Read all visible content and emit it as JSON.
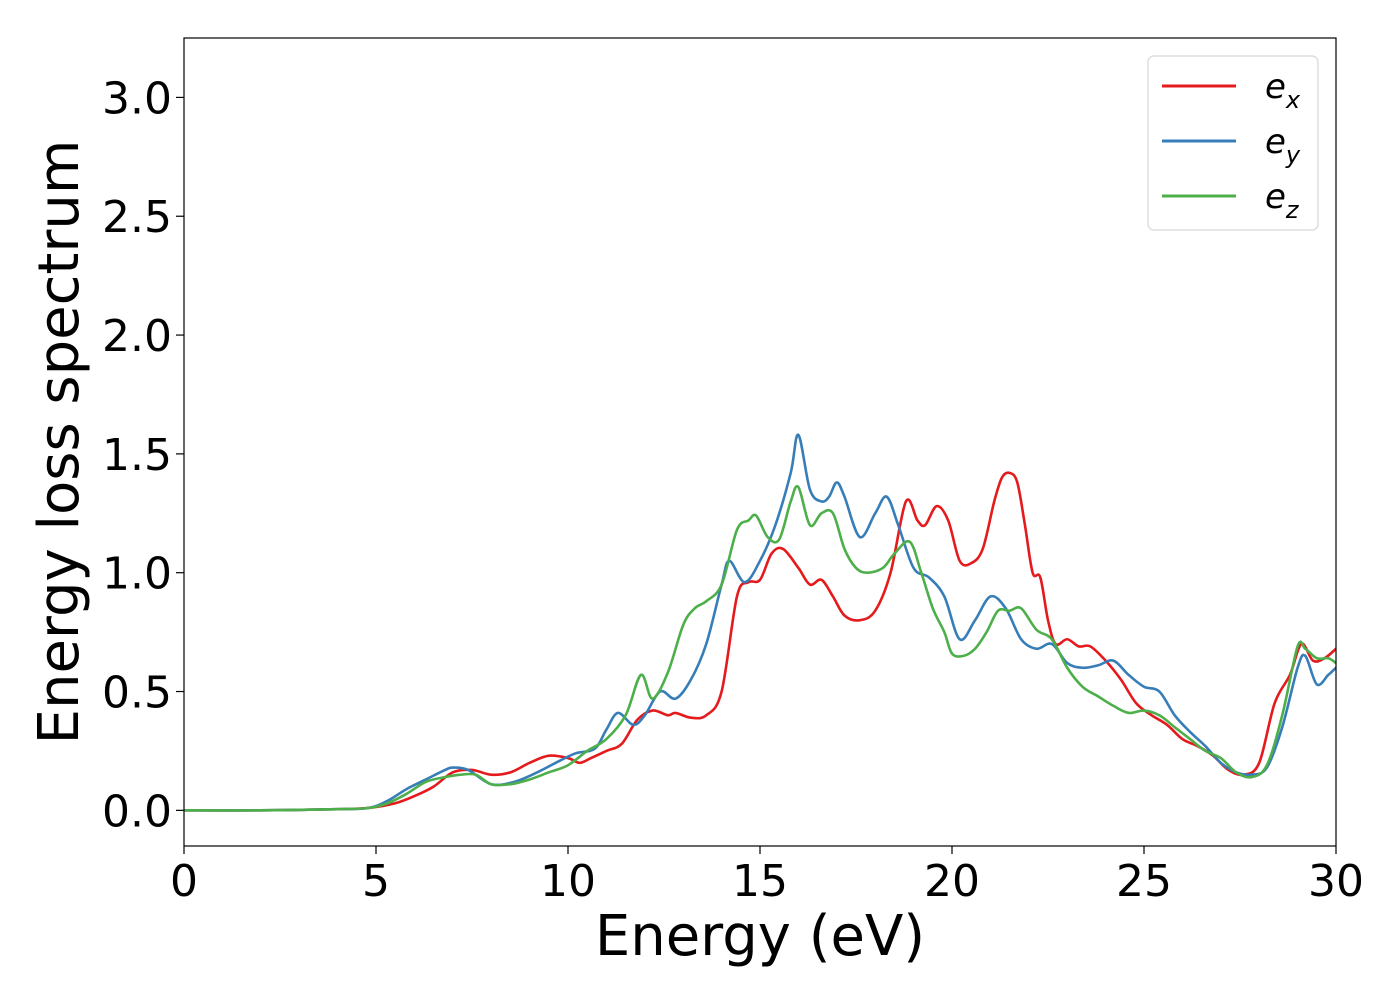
{
  "chart_data": {
    "type": "line",
    "title": "",
    "xlabel": "Energy (eV)",
    "ylabel": "Energy loss spectrum",
    "xlim": [
      0,
      30
    ],
    "ylim": [
      -0.15,
      3.25
    ],
    "xticks": [
      0,
      5,
      10,
      15,
      20,
      25,
      30
    ],
    "xtick_labels": [
      "0",
      "5",
      "10",
      "15",
      "20",
      "25",
      "30"
    ],
    "yticks": [
      0.0,
      0.5,
      1.0,
      1.5,
      2.0,
      2.5,
      3.0
    ],
    "ytick_labels": [
      "0.0",
      "0.5",
      "1.0",
      "1.5",
      "2.0",
      "2.5",
      "3.0"
    ],
    "grid": false,
    "legend": {
      "position": "top-right",
      "entries": [
        {
          "base": "e",
          "sub": "x",
          "color": "#e41a1c"
        },
        {
          "base": "e",
          "sub": "y",
          "color": "#377eb8"
        },
        {
          "base": "e",
          "sub": "z",
          "color": "#4daf4a"
        }
      ]
    },
    "series": [
      {
        "name": "e_x",
        "color": "#e41a1c",
        "x": [
          0,
          2,
          4,
          4.8,
          5.5,
          6.0,
          6.5,
          7.0,
          7.5,
          8.0,
          8.5,
          9.0,
          9.5,
          10.0,
          10.3,
          10.6,
          11.0,
          11.4,
          11.8,
          12.2,
          12.6,
          12.8,
          13.2,
          13.6,
          14.0,
          14.4,
          14.7,
          15.0,
          15.3,
          15.6,
          16.0,
          16.3,
          16.6,
          16.9,
          17.2,
          17.6,
          18.0,
          18.4,
          18.8,
          19.1,
          19.3,
          19.6,
          19.9,
          20.2,
          20.5,
          20.8,
          21.1,
          21.3,
          21.5,
          21.7,
          21.9,
          22.1,
          22.3,
          22.5,
          22.7,
          23.0,
          23.3,
          23.6,
          24.0,
          24.4,
          24.8,
          25.2,
          25.6,
          26.0,
          26.4,
          26.8,
          27.2,
          27.6,
          28.0,
          28.4,
          28.8,
          29.1,
          29.4,
          29.7,
          30.0
        ],
        "y": [
          0.0,
          0.0,
          0.005,
          0.01,
          0.03,
          0.06,
          0.1,
          0.16,
          0.17,
          0.15,
          0.16,
          0.2,
          0.23,
          0.22,
          0.2,
          0.22,
          0.25,
          0.28,
          0.38,
          0.42,
          0.4,
          0.41,
          0.39,
          0.4,
          0.5,
          0.9,
          0.96,
          0.97,
          1.08,
          1.1,
          1.02,
          0.95,
          0.97,
          0.9,
          0.82,
          0.8,
          0.84,
          1.0,
          1.3,
          1.22,
          1.2,
          1.28,
          1.22,
          1.05,
          1.04,
          1.1,
          1.3,
          1.4,
          1.42,
          1.38,
          1.2,
          1.0,
          0.98,
          0.8,
          0.7,
          0.72,
          0.69,
          0.69,
          0.63,
          0.55,
          0.45,
          0.4,
          0.36,
          0.3,
          0.27,
          0.23,
          0.17,
          0.15,
          0.2,
          0.45,
          0.57,
          0.7,
          0.63,
          0.64,
          0.68
        ]
      },
      {
        "name": "e_y",
        "color": "#377eb8",
        "x": [
          0,
          2,
          4,
          4.8,
          5.3,
          5.8,
          6.3,
          6.8,
          7.0,
          7.4,
          8.0,
          8.6,
          9.2,
          9.8,
          10.2,
          10.7,
          11.0,
          11.3,
          11.7,
          12.0,
          12.4,
          12.8,
          13.2,
          13.6,
          14.0,
          14.2,
          14.6,
          15.0,
          15.4,
          15.8,
          16.0,
          16.3,
          16.6,
          16.8,
          17.0,
          17.2,
          17.6,
          18.0,
          18.3,
          18.6,
          19.0,
          19.4,
          19.8,
          20.2,
          20.6,
          21.0,
          21.4,
          21.8,
          22.2,
          22.6,
          23.0,
          23.4,
          23.8,
          24.2,
          24.6,
          25.0,
          25.4,
          25.8,
          26.2,
          26.6,
          27.0,
          27.4,
          27.8,
          28.2,
          28.6,
          29.0,
          29.2,
          29.5,
          29.8,
          30.0
        ],
        "y": [
          0.0,
          0.0,
          0.005,
          0.01,
          0.04,
          0.09,
          0.13,
          0.17,
          0.18,
          0.17,
          0.11,
          0.12,
          0.16,
          0.21,
          0.24,
          0.26,
          0.34,
          0.41,
          0.36,
          0.4,
          0.5,
          0.47,
          0.55,
          0.7,
          0.95,
          1.05,
          0.96,
          1.05,
          1.2,
          1.42,
          1.58,
          1.35,
          1.3,
          1.32,
          1.38,
          1.32,
          1.15,
          1.25,
          1.32,
          1.2,
          1.02,
          0.98,
          0.9,
          0.72,
          0.8,
          0.9,
          0.85,
          0.72,
          0.68,
          0.7,
          0.62,
          0.6,
          0.61,
          0.63,
          0.57,
          0.52,
          0.5,
          0.4,
          0.33,
          0.27,
          0.2,
          0.16,
          0.15,
          0.18,
          0.35,
          0.6,
          0.65,
          0.53,
          0.57,
          0.6
        ]
      },
      {
        "name": "e_z",
        "color": "#4daf4a",
        "x": [
          0,
          2,
          4,
          4.8,
          5.3,
          5.8,
          6.3,
          6.8,
          7.2,
          7.6,
          8.0,
          8.5,
          9.0,
          9.5,
          10.0,
          10.5,
          11.0,
          11.5,
          11.9,
          12.2,
          12.6,
          13.0,
          13.3,
          13.6,
          14.0,
          14.4,
          14.7,
          14.9,
          15.2,
          15.5,
          15.8,
          16.0,
          16.3,
          16.6,
          16.9,
          17.2,
          17.5,
          17.8,
          18.2,
          18.5,
          18.9,
          19.2,
          19.5,
          19.8,
          20.0,
          20.3,
          20.6,
          20.9,
          21.2,
          21.5,
          21.8,
          22.2,
          22.6,
          23.0,
          23.4,
          23.8,
          24.2,
          24.6,
          25.0,
          25.4,
          25.8,
          26.2,
          26.6,
          27.0,
          27.4,
          27.8,
          28.2,
          28.6,
          29.0,
          29.2,
          29.5,
          29.8,
          30.0
        ],
        "y": [
          0.0,
          0.0,
          0.005,
          0.01,
          0.03,
          0.07,
          0.12,
          0.14,
          0.15,
          0.15,
          0.11,
          0.11,
          0.13,
          0.16,
          0.19,
          0.25,
          0.3,
          0.4,
          0.57,
          0.47,
          0.58,
          0.78,
          0.85,
          0.88,
          0.95,
          1.18,
          1.22,
          1.24,
          1.15,
          1.14,
          1.3,
          1.36,
          1.2,
          1.25,
          1.25,
          1.1,
          1.02,
          1.0,
          1.02,
          1.08,
          1.13,
          1.0,
          0.85,
          0.75,
          0.66,
          0.65,
          0.68,
          0.75,
          0.84,
          0.84,
          0.85,
          0.76,
          0.72,
          0.6,
          0.52,
          0.48,
          0.44,
          0.41,
          0.42,
          0.4,
          0.35,
          0.3,
          0.25,
          0.22,
          0.16,
          0.14,
          0.19,
          0.4,
          0.69,
          0.68,
          0.64,
          0.64,
          0.62
        ]
      }
    ]
  }
}
